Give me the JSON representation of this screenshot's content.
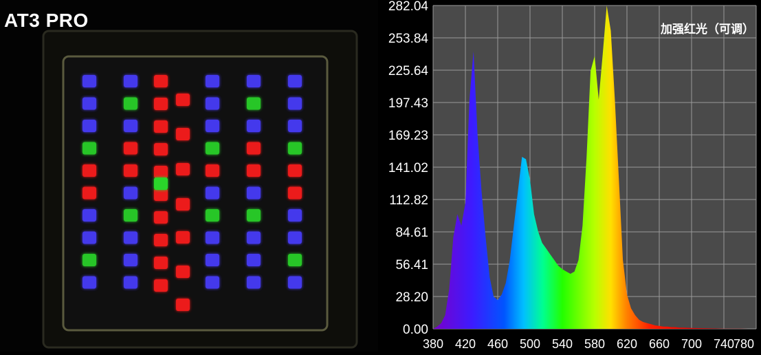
{
  "left_panel": {
    "title": "AT3 PRO",
    "led_columns": [
      [
        "blue",
        "blue",
        "blue",
        "green",
        "red",
        "red",
        "blue",
        "blue",
        "green",
        "blue"
      ],
      [
        "blue",
        "green",
        "blue",
        "red",
        "red",
        "blue",
        "green",
        "blue",
        "blue",
        "blue"
      ],
      [
        "red",
        "red",
        "red",
        "red",
        "red",
        "red",
        "red",
        "red",
        "red",
        "red"
      ],
      [
        "blue",
        "blue",
        "blue",
        "green",
        "red",
        "blue",
        "green",
        "blue",
        "blue",
        "blue"
      ],
      [
        "blue",
        "green",
        "blue",
        "red",
        "red",
        "blue",
        "green",
        "blue",
        "blue",
        "blue"
      ],
      [
        "blue",
        "blue",
        "blue",
        "green",
        "red",
        "red",
        "blue",
        "blue",
        "green",
        "blue"
      ]
    ],
    "center_led": "green",
    "colors": {
      "blue": "#4a3dff",
      "green": "#2bd62b",
      "red": "#ff1a1a"
    }
  },
  "chart_data": {
    "type": "area",
    "title": "加强红光（可调）",
    "xlabel": "",
    "ylabel": "",
    "xlim": [
      380,
      780
    ],
    "ylim": [
      0,
      282.04
    ],
    "x_ticks": [
      "380",
      "420",
      "460",
      "500",
      "540",
      "580",
      "620",
      "660",
      "700",
      "740",
      "780"
    ],
    "y_ticks": [
      "0.00",
      "28.20",
      "56.41",
      "84.61",
      "112.82",
      "141.02",
      "169.23",
      "197.43",
      "225.64",
      "253.84",
      "282.04"
    ],
    "grid": true,
    "background": "#4a4a4a",
    "grid_color": "#9a9a9a",
    "x": [
      380,
      385,
      390,
      395,
      400,
      405,
      410,
      415,
      420,
      425,
      430,
      435,
      440,
      445,
      450,
      455,
      460,
      465,
      470,
      475,
      480,
      485,
      490,
      495,
      500,
      505,
      510,
      515,
      520,
      525,
      530,
      535,
      540,
      545,
      550,
      555,
      560,
      565,
      570,
      575,
      580,
      585,
      590,
      595,
      600,
      605,
      610,
      615,
      620,
      625,
      630,
      635,
      640,
      645,
      650,
      655,
      660,
      665,
      670,
      675,
      680,
      685,
      690,
      700,
      710,
      720,
      730,
      740,
      750,
      760,
      770,
      780
    ],
    "values": [
      0,
      2,
      5,
      12,
      35,
      80,
      100,
      90,
      110,
      200,
      242,
      170,
      120,
      80,
      45,
      28,
      25,
      30,
      40,
      60,
      90,
      120,
      150,
      148,
      130,
      100,
      85,
      75,
      70,
      65,
      60,
      55,
      52,
      50,
      48,
      50,
      60,
      90,
      150,
      225,
      238,
      200,
      240,
      282,
      260,
      200,
      130,
      60,
      30,
      18,
      12,
      8,
      6,
      5,
      4,
      3,
      2.5,
      2,
      2,
      1.5,
      1.5,
      1,
      1,
      0.8,
      0.6,
      0.4,
      0.3,
      0.2,
      0.1,
      0.1,
      0,
      0
    ]
  }
}
